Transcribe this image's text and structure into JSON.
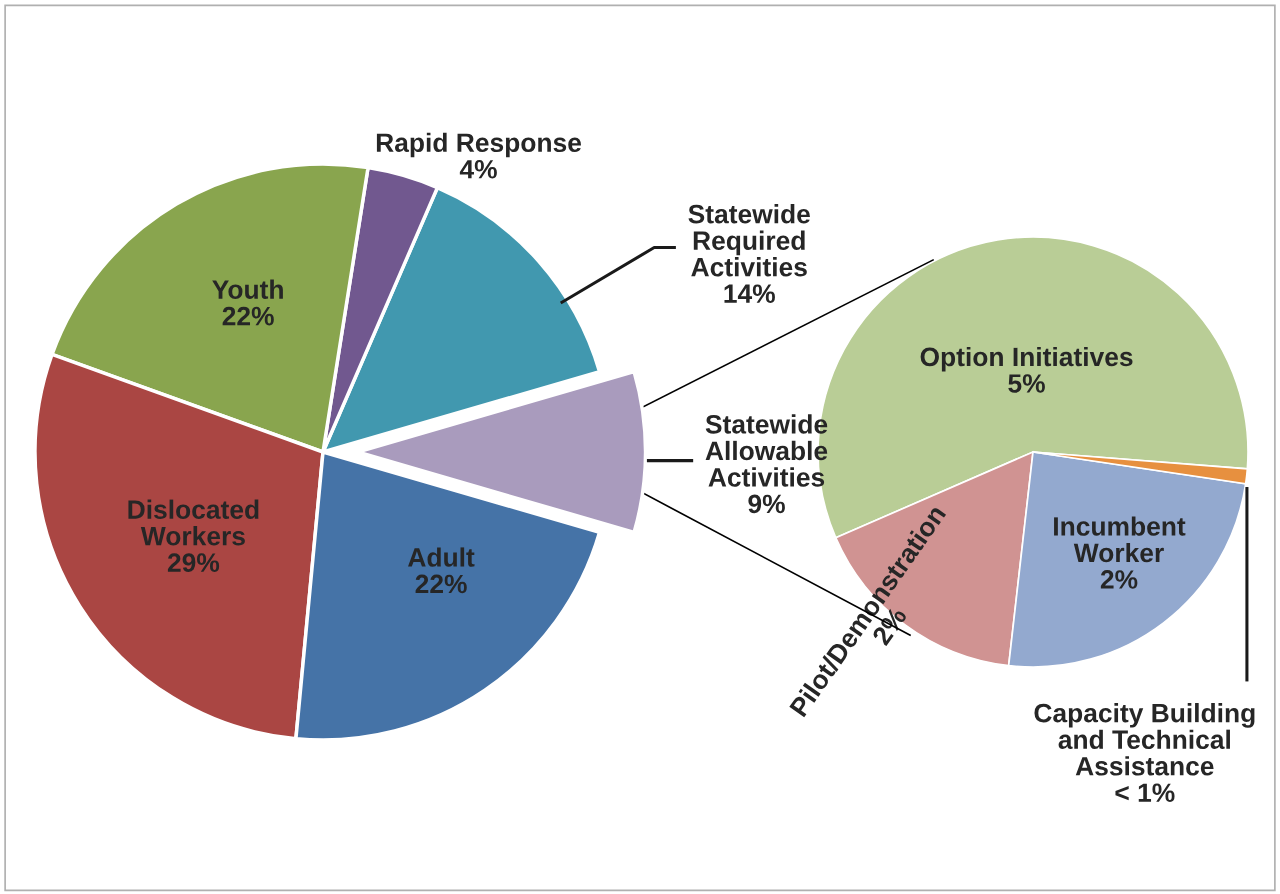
{
  "chart_data": [
    {
      "type": "pie",
      "categories": [
        "Statewide\nAllowable\nActivities",
        "Statewide\nRequired\nActivities",
        "Rapid Response",
        "Youth",
        "Dislocated\nWorkers",
        "Adult"
      ],
      "values": [
        9,
        14,
        4,
        22,
        29,
        22
      ],
      "value_labels": [
        "9%",
        "14%",
        "4%",
        "22%",
        "29%",
        "22%"
      ],
      "colors": [
        "#a99bbd",
        "#4198af",
        "#71588f",
        "#89a54e",
        "#aa4643",
        "#4573a7"
      ]
    },
    {
      "type": "pie",
      "categories": [
        "Option Initiatives",
        "Pilot/Demonstration",
        "Incumbent\nWorker",
        "Capacity Building\nand Technical\nAssistance"
      ],
      "values": [
        5.2,
        1.5,
        2.2,
        0.1
      ],
      "value_labels": [
        "5%",
        "2%",
        "2%",
        "< 1%"
      ],
      "colors": [
        "#b9cd96",
        "#d09392",
        "#93a9cf",
        "#e7903f"
      ]
    }
  ]
}
